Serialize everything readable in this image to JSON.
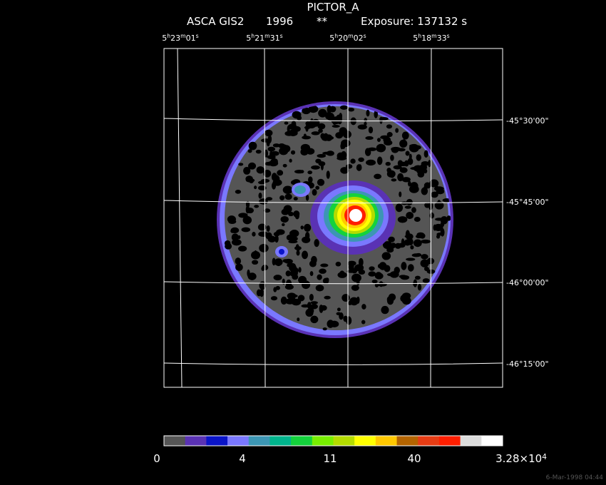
{
  "header": {
    "title": "PICTOR_A",
    "instrument": "ASCA GIS2",
    "year": "1996",
    "marker": "**",
    "exposure": "Exposure: 137132 s"
  },
  "ra_labels": [
    [
      "5",
      "h",
      "23",
      "m",
      "01",
      "s"
    ],
    [
      "5",
      "h",
      "21",
      "m",
      "31",
      "s"
    ],
    [
      "5",
      "h",
      "20",
      "m",
      "02",
      "s"
    ],
    [
      "5",
      "h",
      "18",
      "m",
      "33",
      "s"
    ]
  ],
  "dec_labels": [
    "-45°30'00\"",
    "-45°45'00\"",
    "-46°00'00\"",
    "-46°15'00\""
  ],
  "colorbar": {
    "colors": [
      "#555555",
      "#5a32b4",
      "#0a14c8",
      "#7a78ff",
      "#3c96b4",
      "#00b48c",
      "#14d23c",
      "#78ee00",
      "#b4dc00",
      "#ffff00",
      "#ffc800",
      "#b46400",
      "#e63c14",
      "#ff1e00",
      "#dcdcdc",
      "#ffffff"
    ],
    "labels": [
      [
        "0"
      ],
      [
        "4"
      ],
      [
        "11"
      ],
      [
        "40"
      ],
      [
        "3.28×10",
        "4"
      ]
    ]
  },
  "footer": "6-Mar-1998 04:44"
}
